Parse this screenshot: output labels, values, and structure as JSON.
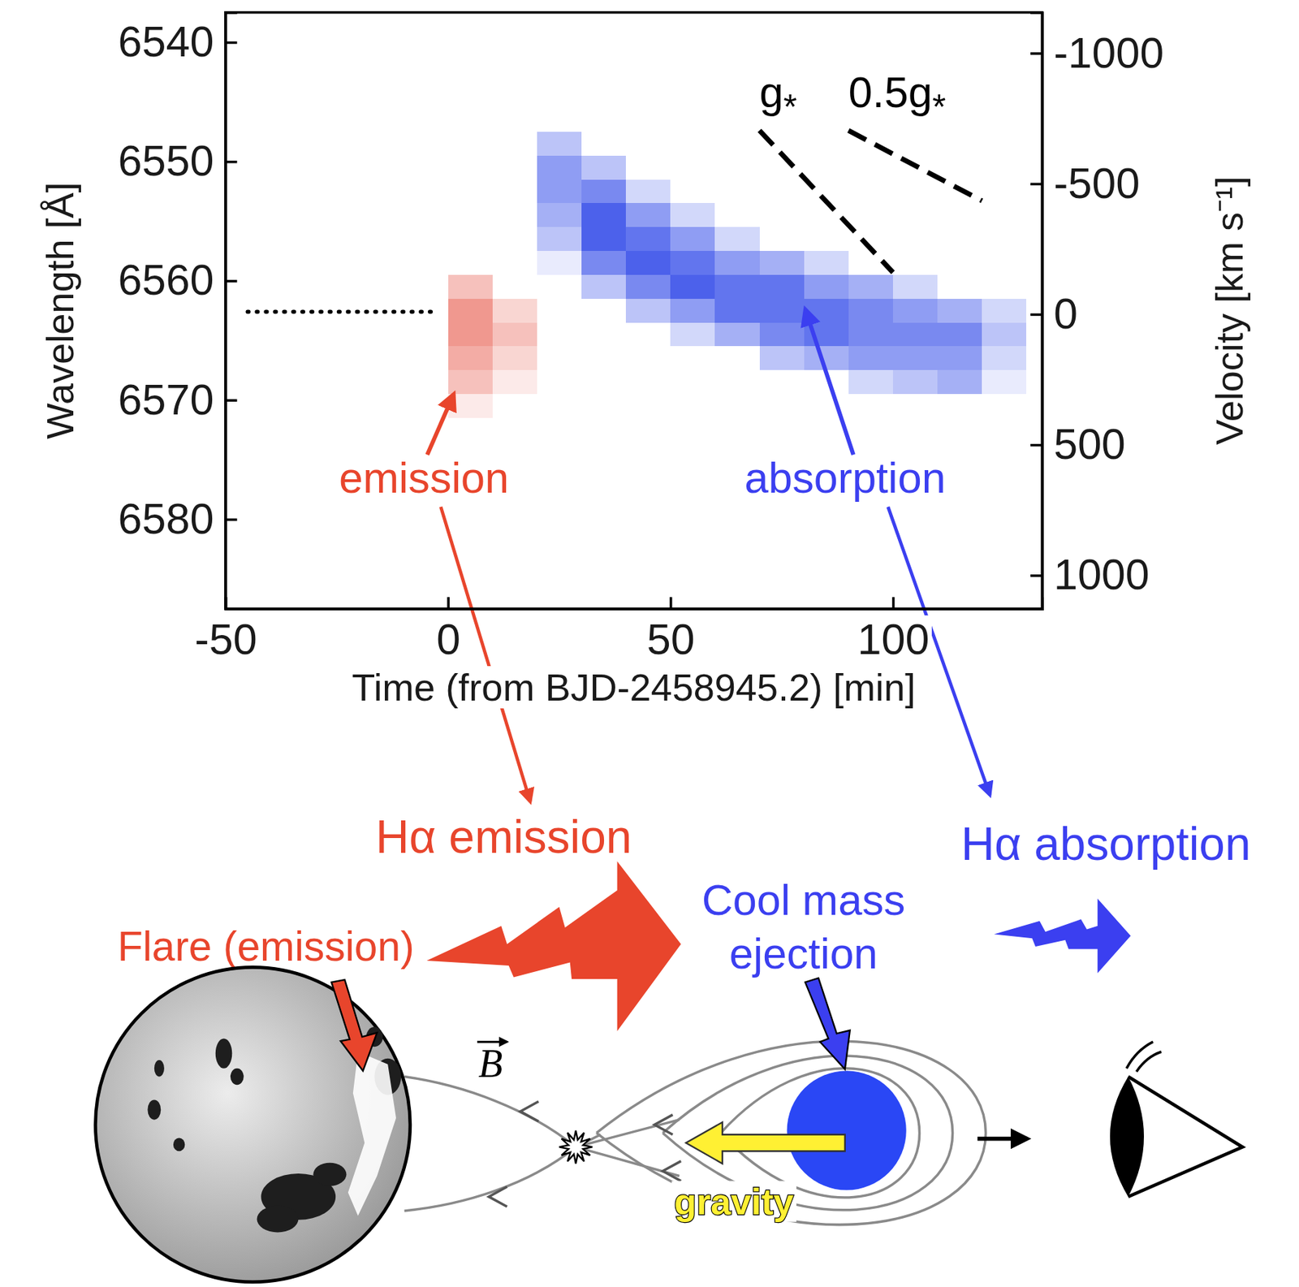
{
  "chart_data": {
    "type": "heatmap",
    "x_label": "Time (from BJD-2458945.2) [min]",
    "y_label": "Wavelength [Å]",
    "y2_label": "Velocity [km s⁻¹]",
    "xlim": [
      -50,
      133.5
    ],
    "xticks": [
      -50,
      0,
      50,
      100
    ],
    "ylim": [
      6587.5,
      6537.5
    ],
    "yticks": [
      6540,
      6550,
      6560,
      6570,
      6580
    ],
    "y2lim": [
      1128,
      -1156
    ],
    "y2ticks": [
      -1000,
      -500,
      0,
      500,
      1000
    ],
    "grid": false,
    "zlim": [
      -1,
      1
    ],
    "time_bins": [
      -50,
      -40,
      -30,
      -20,
      -10,
      0,
      10,
      20,
      30,
      40,
      50,
      60,
      70,
      80,
      90,
      100,
      110,
      120,
      130,
      133.5
    ],
    "wavelength_bins": [
      6537.5,
      6539.5,
      6541.5,
      6543.5,
      6545.5,
      6547.5,
      6549.5,
      6551.5,
      6553.5,
      6555.5,
      6557.5,
      6559.5,
      6561.5,
      6563.5,
      6565.5,
      6567.5,
      6569.5,
      6571.5,
      6573.5,
      6575.5,
      6577.5,
      6579.5,
      6581.5,
      6583.5,
      6585.5,
      6587.5
    ],
    "cells": [
      [
        0,
        0,
        0,
        0,
        0,
        0,
        0,
        0,
        0,
        0,
        0,
        0,
        0,
        0,
        0,
        0,
        0,
        0,
        0
      ],
      [
        0,
        0,
        0,
        0,
        0,
        0,
        0,
        0,
        0,
        0,
        0,
        0,
        0,
        0,
        0,
        0,
        0,
        0,
        0
      ],
      [
        0,
        0,
        0,
        0,
        0,
        0,
        0,
        0,
        0,
        0,
        0,
        0,
        0,
        0,
        0,
        0,
        0,
        0,
        0
      ],
      [
        0,
        0,
        0,
        0,
        0,
        0,
        0,
        0,
        0,
        0,
        0,
        0,
        0,
        0,
        0,
        0,
        0,
        0,
        0
      ],
      [
        0,
        0,
        0,
        0,
        0,
        0,
        0,
        0,
        0,
        0,
        0,
        0,
        0,
        0,
        0,
        0,
        0,
        0,
        0
      ],
      [
        0,
        0,
        0,
        0,
        0,
        0,
        0,
        -0.3,
        0,
        0,
        0,
        0,
        0,
        0,
        0,
        0,
        0,
        0,
        0
      ],
      [
        0,
        0,
        0,
        0,
        0,
        0,
        0,
        -0.5,
        -0.3,
        0,
        0,
        0,
        0,
        0,
        0,
        0,
        0,
        0,
        0
      ],
      [
        0,
        0,
        0,
        0,
        0,
        0,
        0,
        -0.5,
        -0.6,
        -0.2,
        0,
        0,
        0,
        0,
        0,
        0,
        0,
        0,
        0
      ],
      [
        0,
        0,
        0,
        0,
        0,
        0,
        0,
        -0.4,
        -0.8,
        -0.5,
        -0.2,
        0,
        0,
        0,
        0,
        0,
        0,
        0,
        0
      ],
      [
        0,
        0,
        0,
        0,
        0,
        0,
        0,
        -0.3,
        -0.8,
        -0.7,
        -0.5,
        -0.2,
        0,
        0,
        0,
        0,
        0,
        0,
        0
      ],
      [
        0,
        0,
        0,
        0,
        0,
        0,
        0,
        -0.1,
        -0.6,
        -0.8,
        -0.7,
        -0.5,
        -0.4,
        -0.2,
        0,
        0,
        0,
        0,
        0
      ],
      [
        0,
        0,
        0,
        0,
        0,
        0.3,
        0,
        0,
        -0.3,
        -0.6,
        -0.8,
        -0.7,
        -0.7,
        -0.5,
        -0.4,
        -0.2,
        0,
        0,
        0
      ],
      [
        0,
        0,
        0,
        0,
        0,
        0.5,
        0.2,
        0,
        0,
        -0.3,
        -0.5,
        -0.7,
        -0.7,
        -0.7,
        -0.6,
        -0.5,
        -0.4,
        -0.2,
        0
      ],
      [
        0,
        0,
        0,
        0,
        0,
        0.5,
        0.3,
        0,
        0,
        0,
        -0.2,
        -0.4,
        -0.6,
        -0.7,
        -0.6,
        -0.6,
        -0.6,
        -0.3,
        0
      ],
      [
        0,
        0,
        0,
        0,
        0,
        0.4,
        0.2,
        0,
        0,
        0,
        0,
        0,
        -0.3,
        -0.4,
        -0.5,
        -0.5,
        -0.5,
        -0.2,
        0
      ],
      [
        0,
        0,
        0,
        0,
        0,
        0.3,
        0.1,
        0,
        0,
        0,
        0,
        0,
        0,
        0,
        -0.2,
        -0.3,
        -0.4,
        -0.1,
        0
      ],
      [
        0,
        0,
        0,
        0,
        0,
        0.1,
        0,
        0,
        0,
        0,
        0,
        0,
        0,
        0,
        0,
        0,
        0,
        0,
        0
      ],
      [
        0,
        0,
        0,
        0,
        0,
        0,
        0,
        0,
        0,
        0,
        0,
        0,
        0,
        0,
        0,
        0,
        0,
        0,
        0
      ],
      [
        0,
        0,
        0,
        0,
        0,
        0,
        0,
        0,
        0,
        0,
        0,
        0,
        0,
        0,
        0,
        0,
        0,
        0,
        0
      ],
      [
        0,
        0,
        0,
        0,
        0,
        0,
        0,
        0,
        0,
        0,
        0,
        0,
        0,
        0,
        0,
        0,
        0,
        0,
        0
      ],
      [
        0,
        0,
        0,
        0,
        0,
        0,
        0,
        0,
        0,
        0,
        0,
        0,
        0,
        0,
        0,
        0,
        0,
        0,
        0
      ],
      [
        0,
        0,
        0,
        0,
        0,
        0,
        0,
        0,
        0,
        0,
        0,
        0,
        0,
        0,
        0,
        0,
        0,
        0,
        0
      ],
      [
        0,
        0,
        0,
        0,
        0,
        0,
        0,
        0,
        0,
        0,
        0,
        0,
        0,
        0,
        0,
        0,
        0,
        0,
        0
      ],
      [
        0,
        0,
        0,
        0,
        0,
        0,
        0,
        0,
        0,
        0,
        0,
        0,
        0,
        0,
        0,
        0,
        0,
        0,
        0
      ],
      [
        0,
        0,
        0,
        0,
        0,
        0,
        0,
        0,
        0,
        0,
        0,
        0,
        0,
        0,
        0,
        0,
        0,
        0,
        0
      ]
    ],
    "reference_lines": [
      {
        "x": [
          -45,
          -3
        ],
        "y": [
          6562.6,
          6562.6
        ],
        "line_style": "dotted"
      },
      {
        "label": "g*",
        "x": [
          70,
          100
        ],
        "y": [
          6547.4,
          6559.3
        ],
        "line_style": "dashed"
      },
      {
        "label": "0.5g*",
        "x": [
          90,
          120
        ],
        "y": [
          6547.4,
          6553.3
        ],
        "line_style": "dashed"
      }
    ],
    "annotations": [
      {
        "text": "emission",
        "color": "#e8452c",
        "x": 1.3,
        "y": 6569.5
      },
      {
        "text": "absorption",
        "color": "#3b3ff0",
        "x": 80.3,
        "y": 6562.4
      }
    ]
  },
  "diagram": {
    "emission_label": "Hα emission",
    "absorption_label": "Hα absorption",
    "flare_label": "Flare (emission)",
    "ejection_label": [
      "Cool mass",
      "ejection"
    ],
    "field_label": "B",
    "gravity_label": "gravity"
  }
}
